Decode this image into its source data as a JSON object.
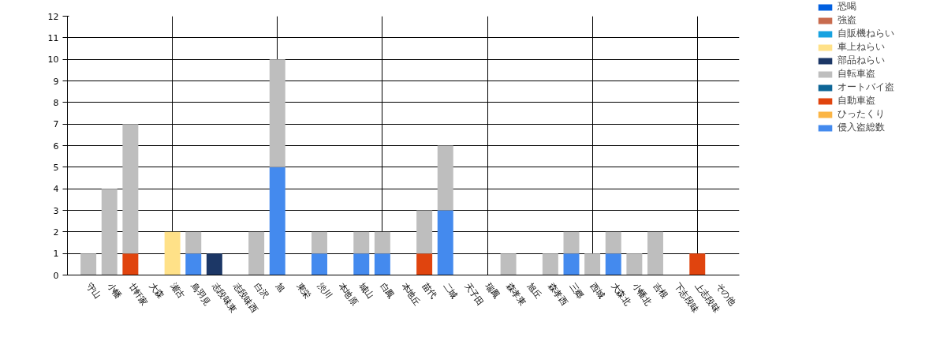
{
  "chart_data": {
    "type": "bar",
    "stacked": true,
    "grid": true,
    "legend": "top right",
    "categories": [
      "守山",
      "小幡",
      "廿軒家",
      "大森",
      "瀬古",
      "鳥羽見",
      "志段味東",
      "志段味西",
      "白沢",
      "旭",
      "東栄",
      "渋川",
      "本地原",
      "城山",
      "白鳳",
      "本地丘",
      "苗代",
      "二城",
      "天子田",
      "瑞鳳",
      "森孝東",
      "旭丘",
      "森孝西",
      "三郷",
      "西城",
      "大森北",
      "小幡北",
      "吉根",
      "下志段味",
      "上志段味",
      "その他"
    ],
    "ylim": [
      0,
      12
    ],
    "yticks": [
      0,
      1,
      2,
      3,
      4,
      5,
      6,
      7,
      8,
      9,
      10,
      11,
      12
    ],
    "series": [
      {
        "name": "侵入盗総数",
        "color": "#448aee",
        "values": [
          0,
          0,
          0,
          0,
          0,
          1,
          0,
          0,
          0,
          5,
          0,
          1,
          0,
          1,
          1,
          0,
          0,
          3,
          0,
          0,
          0,
          0,
          0,
          1,
          0,
          1,
          0,
          0,
          0,
          0,
          0
        ]
      },
      {
        "name": "ひったくり",
        "color": "#fbb545",
        "values": [
          0,
          0,
          0,
          0,
          0,
          0,
          0,
          0,
          0,
          0,
          0,
          0,
          0,
          0,
          0,
          0,
          0,
          0,
          0,
          0,
          0,
          0,
          0,
          0,
          0,
          0,
          0,
          0,
          0,
          0,
          0
        ]
      },
      {
        "name": "自動車盗",
        "color": "#e0440e",
        "values": [
          0,
          0,
          1,
          0,
          0,
          0,
          0,
          0,
          0,
          0,
          0,
          0,
          0,
          0,
          0,
          0,
          1,
          0,
          0,
          0,
          0,
          0,
          0,
          0,
          0,
          0,
          0,
          0,
          0,
          1,
          0
        ]
      },
      {
        "name": "オートバイ盗",
        "color": "#0e6697",
        "values": [
          0,
          0,
          0,
          0,
          0,
          0,
          0,
          0,
          0,
          0,
          0,
          0,
          0,
          0,
          0,
          0,
          0,
          0,
          0,
          0,
          0,
          0,
          0,
          0,
          0,
          0,
          0,
          0,
          0,
          0,
          0
        ]
      },
      {
        "name": "自転車盗",
        "color": "#bebebe",
        "values": [
          1,
          4,
          6,
          0,
          0,
          1,
          0,
          0,
          2,
          5,
          0,
          1,
          0,
          1,
          1,
          0,
          2,
          3,
          0,
          0,
          1,
          0,
          1,
          1,
          1,
          1,
          1,
          2,
          0,
          0,
          0
        ]
      },
      {
        "name": "部品ねらい",
        "color": "#1c3766",
        "values": [
          0,
          0,
          0,
          0,
          0,
          0,
          1,
          0,
          0,
          0,
          0,
          0,
          0,
          0,
          0,
          0,
          0,
          0,
          0,
          0,
          0,
          0,
          0,
          0,
          0,
          0,
          0,
          0,
          0,
          0,
          0
        ]
      },
      {
        "name": "車上ねらい",
        "color": "#ffe188",
        "values": [
          0,
          0,
          0,
          0,
          2,
          0,
          0,
          0,
          0,
          0,
          0,
          0,
          0,
          0,
          0,
          0,
          0,
          0,
          0,
          0,
          0,
          0,
          0,
          0,
          0,
          0,
          0,
          0,
          0,
          0,
          0
        ]
      },
      {
        "name": "自販機ねらい",
        "color": "#17a2e0",
        "values": [
          0,
          0,
          0,
          0,
          0,
          0,
          0,
          0,
          0,
          0,
          0,
          0,
          0,
          0,
          0,
          0,
          0,
          0,
          0,
          0,
          0,
          0,
          0,
          0,
          0,
          0,
          0,
          0,
          0,
          0,
          0
        ]
      },
      {
        "name": "強盗",
        "color": "#c86b4e",
        "values": [
          0,
          0,
          0,
          0,
          0,
          0,
          0,
          0,
          0,
          0,
          0,
          0,
          0,
          0,
          0,
          0,
          0,
          0,
          0,
          0,
          0,
          0,
          0,
          0,
          0,
          0,
          0,
          0,
          0,
          0,
          0
        ]
      },
      {
        "name": "恐喝",
        "color": "#0260e0",
        "values": [
          0,
          0,
          0,
          0,
          0,
          0,
          0,
          0,
          0,
          0,
          0,
          0,
          0,
          0,
          0,
          0,
          0,
          0,
          0,
          0,
          0,
          0,
          0,
          0,
          0,
          0,
          0,
          0,
          0,
          0,
          0
        ]
      }
    ]
  }
}
